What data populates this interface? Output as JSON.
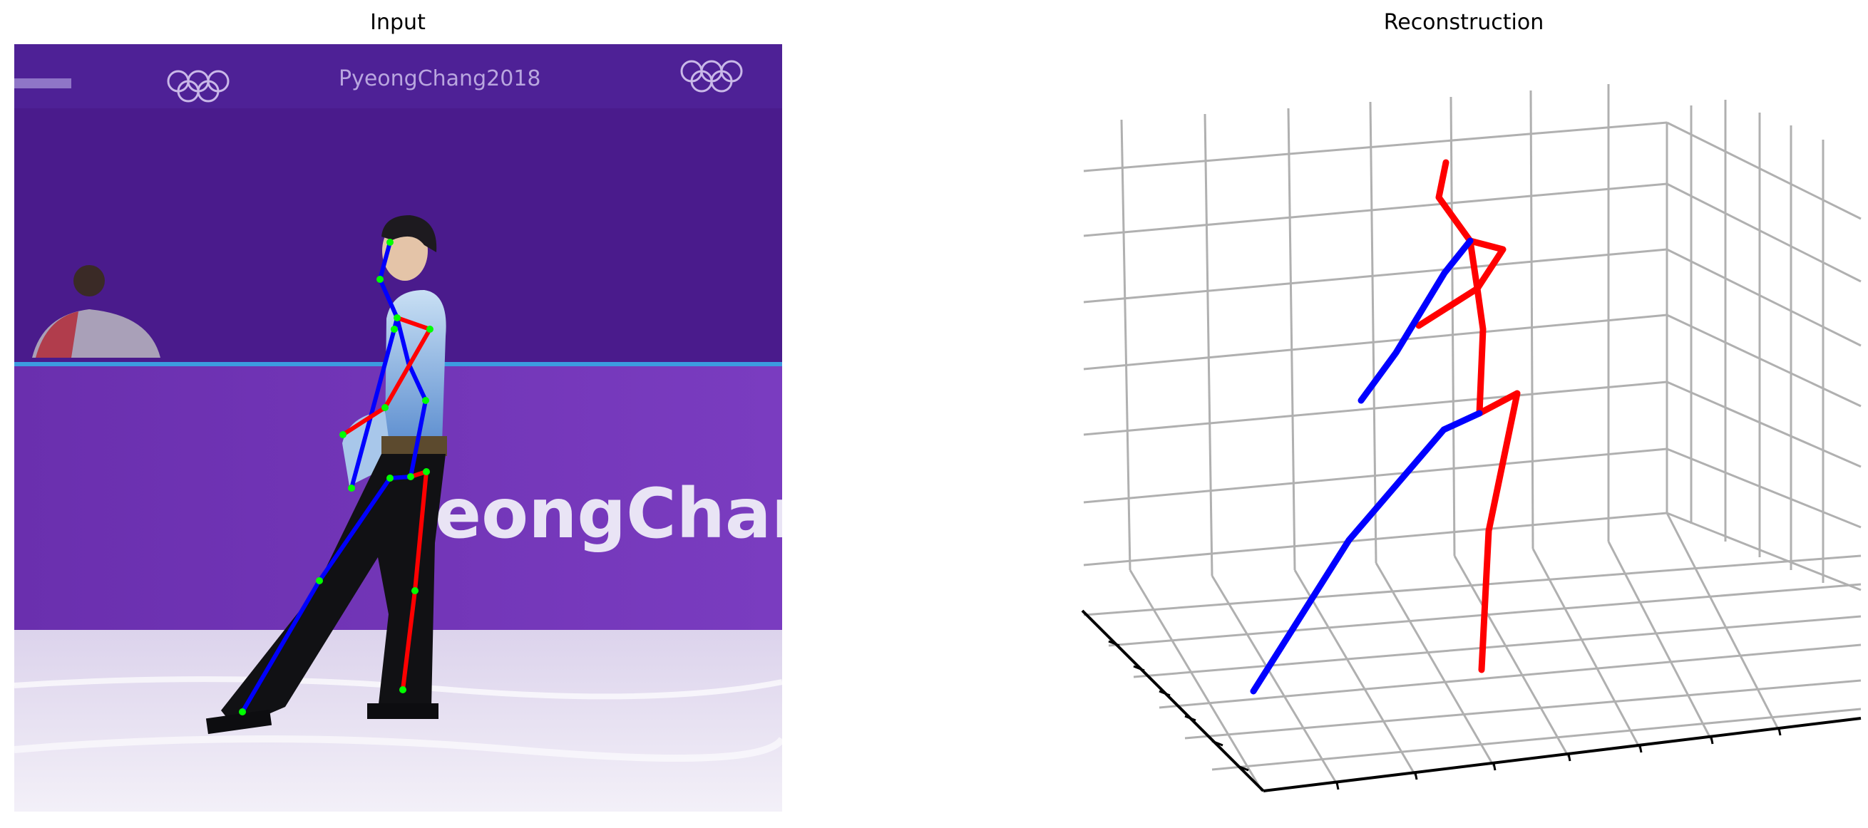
{
  "panels": {
    "input_title": "Input",
    "reconstruction_title": "Reconstruction"
  },
  "photo": {
    "banner_text": "PyeongChang2018",
    "board_text": "eongChan"
  },
  "colors": {
    "left_limbs": "#0000ff",
    "right_limbs": "#ff0000",
    "joints": "#00ff00",
    "grid": "#b0b0b0",
    "axis": "#000000",
    "background_purple": "#4a1b8c"
  }
}
